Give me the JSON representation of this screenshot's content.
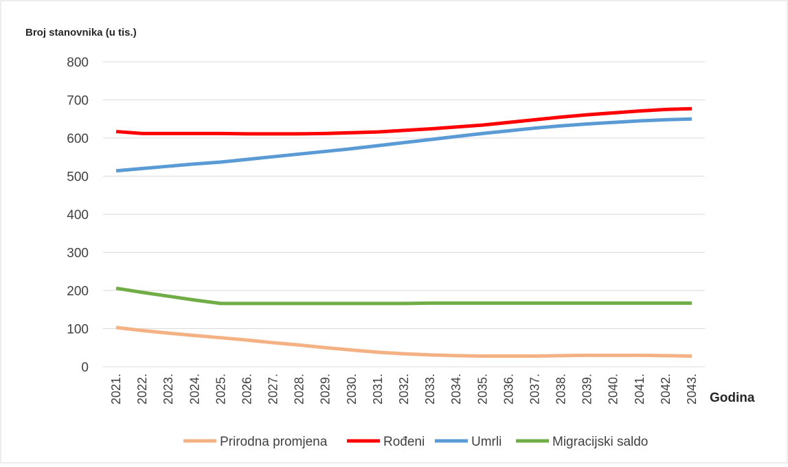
{
  "chart_data": {
    "type": "line",
    "y_label": "Broj stanovnika (u tis.)",
    "x_label": "Godina",
    "categories": [
      "2021.",
      "2022.",
      "2023.",
      "2024.",
      "2025.",
      "2026.",
      "2027.",
      "2028.",
      "2029.",
      "2030.",
      "2031.",
      "2032.",
      "2033.",
      "2034.",
      "2035.",
      "2036.",
      "2037.",
      "2038.",
      "2039.",
      "2040.",
      "2041.",
      "2042.",
      "2043."
    ],
    "series": [
      {
        "name": "Prirodna promjena",
        "color": "#f4b183",
        "values": [
          103,
          95,
          88,
          82,
          76,
          70,
          63,
          57,
          50,
          44,
          38,
          34,
          31,
          29,
          28,
          28,
          28,
          29,
          30,
          30,
          30,
          29,
          28
        ]
      },
      {
        "name": "Rođeni",
        "color": "#ff0000",
        "values": [
          617,
          612,
          612,
          612,
          612,
          611,
          611,
          611,
          612,
          614,
          616,
          620,
          624,
          629,
          634,
          641,
          648,
          655,
          661,
          666,
          671,
          675,
          677
        ]
      },
      {
        "name": "Umrli",
        "color": "#5b9bd5",
        "values": [
          514,
          520,
          526,
          532,
          537,
          544,
          551,
          558,
          565,
          572,
          580,
          588,
          596,
          604,
          612,
          619,
          626,
          632,
          637,
          641,
          645,
          648,
          650
        ]
      },
      {
        "name": "Migracijski saldo",
        "color": "#70ad47",
        "values": [
          206,
          195,
          185,
          175,
          166,
          166,
          166,
          166,
          166,
          166,
          166,
          166,
          167,
          167,
          167,
          167,
          167,
          167,
          167,
          167,
          167,
          167,
          167
        ]
      }
    ],
    "ylim": [
      0,
      800
    ],
    "yticks": [
      0,
      100,
      200,
      300,
      400,
      500,
      600,
      700,
      800
    ],
    "grid": true,
    "legend": "bottom"
  }
}
